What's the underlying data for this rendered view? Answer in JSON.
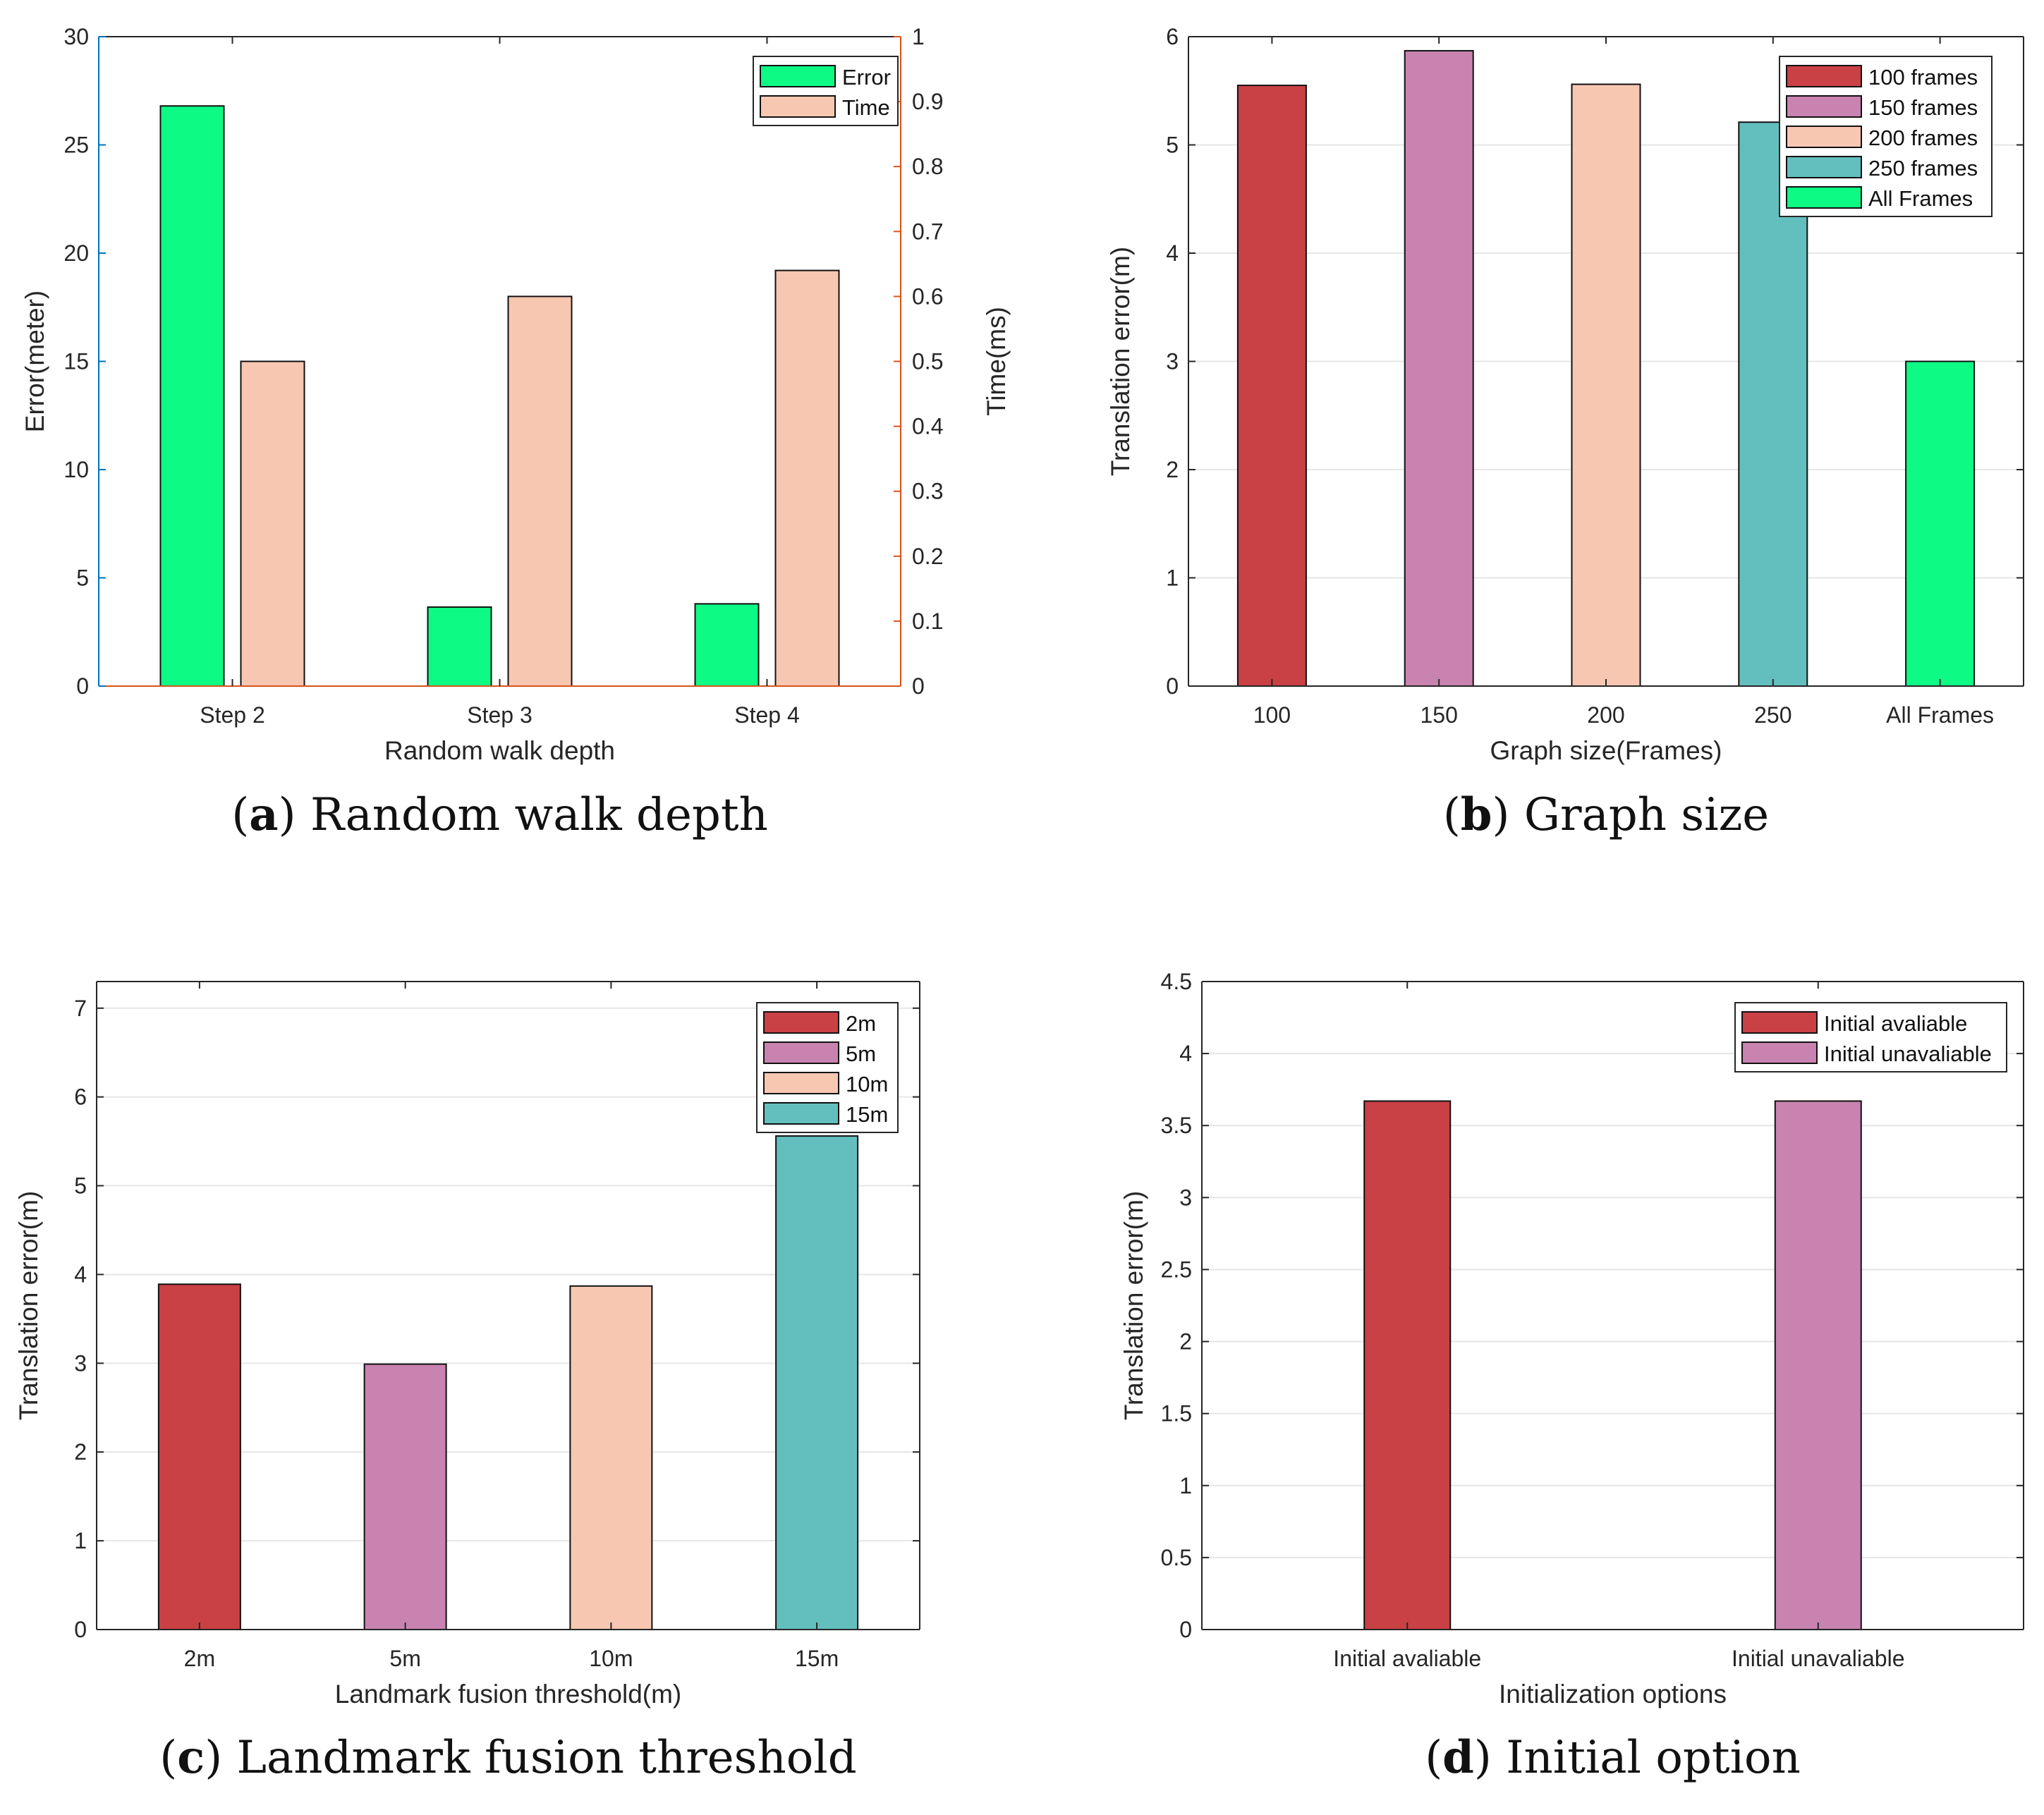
{
  "chart_data": [
    {
      "type": "bar",
      "caption_letter": "a",
      "caption_text": "Random walk depth",
      "xlabel": "Random walk depth",
      "ylabel": "Error(meter)",
      "ylabel_right": "Time(ms)",
      "categories": [
        "Step 2",
        "Step 3",
        "Step 4"
      ],
      "ylim": [
        0,
        30
      ],
      "yticks": [
        "0",
        "5",
        "10",
        "15",
        "20",
        "25",
        "30"
      ],
      "ylim_right": [
        0,
        1
      ],
      "yticks_right": [
        "0",
        "0.1",
        "0.2",
        "0.3",
        "0.4",
        "0.5",
        "0.6",
        "0.7",
        "0.8",
        "0.9",
        "1"
      ],
      "grid": false,
      "legend": "top-right",
      "left_axis_color": "#0072BD",
      "right_axis_color": "#D95319",
      "series": [
        {
          "name": "Error",
          "axis": "left",
          "color": "#0DFA85",
          "values": [
            26.8,
            3.65,
            3.8
          ]
        },
        {
          "name": "Time",
          "axis": "right",
          "color": "#F8C7B2",
          "values": [
            0.5,
            0.6,
            0.64
          ]
        }
      ]
    },
    {
      "type": "bar",
      "caption_letter": "b",
      "caption_text": "Graph size",
      "xlabel": "Graph size(Frames)",
      "ylabel": "Translation error(m)",
      "categories": [
        "100",
        "150",
        "200",
        "250",
        "All Frames"
      ],
      "ylim": [
        0,
        6
      ],
      "yticks": [
        "0",
        "1",
        "2",
        "3",
        "4",
        "5",
        "6"
      ],
      "grid": true,
      "legend": "top-right",
      "series": [
        {
          "name": "100 frames",
          "color": "#C94045",
          "values": [
            5.55,
            null,
            null,
            null,
            null
          ]
        },
        {
          "name": "150 frames",
          "color": "#C983B0",
          "values": [
            null,
            5.87,
            null,
            null,
            null
          ]
        },
        {
          "name": "200 frames",
          "color": "#F8C7B2",
          "values": [
            null,
            null,
            5.56,
            null,
            null
          ]
        },
        {
          "name": "250 frames",
          "color": "#63BFBE",
          "values": [
            null,
            null,
            null,
            5.21,
            null
          ]
        },
        {
          "name": "All Frames",
          "color": "#0DFA85",
          "values": [
            null,
            null,
            null,
            null,
            3.0
          ]
        }
      ]
    },
    {
      "type": "bar",
      "caption_letter": "c",
      "caption_text": "Landmark fusion threshold",
      "xlabel": "Landmark fusion threshold(m)",
      "ylabel": "Translation error(m)",
      "categories": [
        "2m",
        "5m",
        "10m",
        "15m"
      ],
      "ylim": [
        0,
        7.3
      ],
      "yticks": [
        "0",
        "1",
        "2",
        "3",
        "4",
        "5",
        "6",
        "7"
      ],
      "grid": true,
      "legend": "top-right",
      "series": [
        {
          "name": "2m",
          "color": "#C94045",
          "values": [
            3.89,
            null,
            null,
            null
          ]
        },
        {
          "name": "5m",
          "color": "#C983B0",
          "values": [
            null,
            2.99,
            null,
            null
          ]
        },
        {
          "name": "10m",
          "color": "#F8C7B2",
          "values": [
            null,
            null,
            3.87,
            null
          ]
        },
        {
          "name": "15m",
          "color": "#63BFBE",
          "values": [
            null,
            null,
            null,
            5.56
          ]
        }
      ]
    },
    {
      "type": "bar",
      "caption_letter": "d",
      "caption_text": "Initial option",
      "xlabel": "Initialization options",
      "ylabel": "Translation error(m)",
      "categories": [
        "Initial avaliable",
        "Initial unavaliable"
      ],
      "ylim": [
        0,
        4.5
      ],
      "yticks": [
        "0",
        "0.5",
        "1",
        "1.5",
        "2",
        "2.5",
        "3",
        "3.5",
        "4",
        "4.5"
      ],
      "grid": true,
      "legend": "top-right",
      "series": [
        {
          "name": "Initial avaliable",
          "color": "#C94045",
          "values": [
            3.67,
            null
          ]
        },
        {
          "name": "Initial unavaliable",
          "color": "#C983B0",
          "values": [
            null,
            3.67
          ]
        }
      ]
    }
  ]
}
